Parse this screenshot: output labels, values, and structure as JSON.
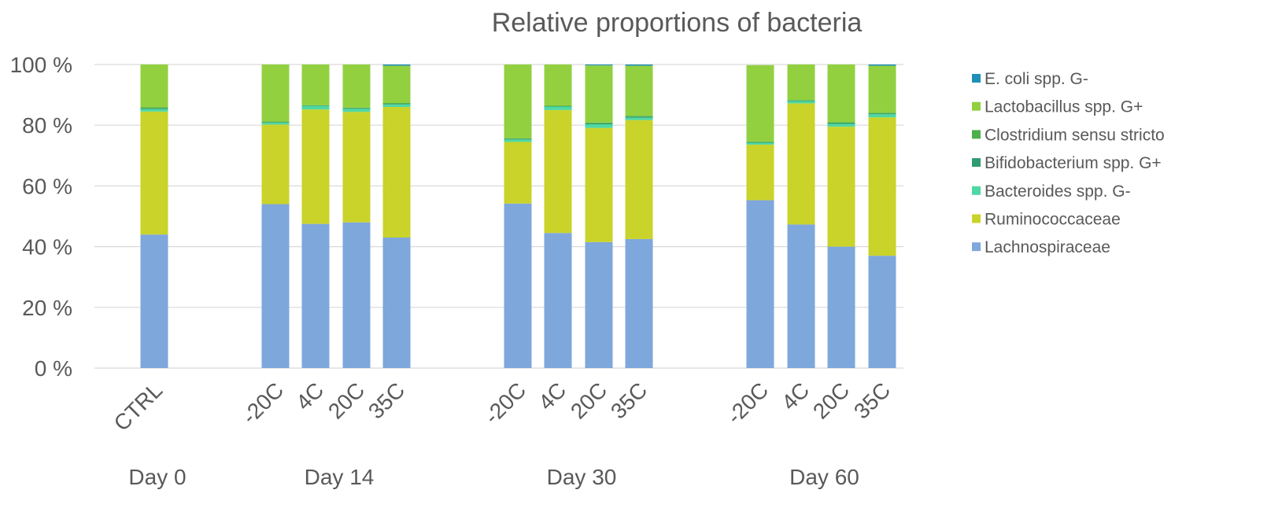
{
  "chart_data": {
    "type": "bar",
    "stacked": true,
    "title": "Relative proportions of bacteria",
    "xlabel": "",
    "ylabel": "",
    "ylim": [
      0,
      100
    ],
    "y_ticks": [
      "0 %",
      "20 %",
      "40 %",
      "60 %",
      "80 %",
      "100 %"
    ],
    "grid": true,
    "legend_position": "right",
    "categories": [
      "CTRL",
      "-20C",
      "4C",
      "20C",
      "35C",
      "-20C",
      "4C",
      "20C",
      "35C",
      "-20C",
      "4C",
      "20C",
      "35C"
    ],
    "groups": [
      {
        "label": "Day 0",
        "members": 1
      },
      {
        "label": "Day 14",
        "members": 4
      },
      {
        "label": "Day 30",
        "members": 4
      },
      {
        "label": "Day 60",
        "members": 4
      }
    ],
    "series": [
      {
        "name": "Lachnospiraceae",
        "color": "#7ea7dc",
        "values": [
          44.0,
          54.0,
          47.5,
          48.0,
          43.0,
          54.2,
          44.5,
          41.5,
          42.5,
          55.3,
          47.3,
          40.0,
          37.0
        ]
      },
      {
        "name": "Ruminococcaceae",
        "color": "#c9d32a",
        "values": [
          40.5,
          26.2,
          37.7,
          36.4,
          43.0,
          20.3,
          40.5,
          37.6,
          39.2,
          18.3,
          39.9,
          39.5,
          45.6
        ]
      },
      {
        "name": "Bacteroides spp. G-",
        "color": "#4ed8a4",
        "values": [
          0.8,
          0.6,
          1.2,
          1.0,
          0.8,
          0.8,
          1.2,
          1.2,
          0.8,
          0.6,
          0.8,
          0.9,
          1.0
        ]
      },
      {
        "name": "Bifidobacterium spp. G+",
        "color": "#2e9c6e",
        "values": [
          0.2,
          0.2,
          0.1,
          0.2,
          0.2,
          0.2,
          0.1,
          0.3,
          0.3,
          0.2,
          0.1,
          0.3,
          0.2
        ]
      },
      {
        "name": "Clostridium sensu stricto",
        "color": "#4caf4c",
        "values": [
          0.4,
          0.2,
          0.1,
          0.2,
          0.3,
          0.2,
          0.1,
          0.3,
          0.3,
          0.2,
          0.2,
          0.3,
          0.3
        ]
      },
      {
        "name": "Lactobacillus spp. G+",
        "color": "#92d040",
        "values": [
          14.1,
          18.8,
          13.4,
          14.2,
          12.3,
          24.3,
          13.6,
          18.8,
          16.5,
          25.2,
          11.7,
          19.0,
          15.5
        ]
      },
      {
        "name": "E. coli spp. G-",
        "color": "#1f8fb8",
        "values": [
          0.0,
          0.0,
          0.0,
          0.0,
          0.4,
          0.0,
          0.0,
          0.3,
          0.4,
          0.0,
          0.0,
          0.0,
          0.4
        ]
      }
    ],
    "legend_order": [
      "E. coli spp. G-",
      "Lactobacillus spp. G+",
      "Clostridium sensu stricto",
      "Bifidobacterium spp. G+",
      "Bacteroides spp. G-",
      "Ruminococcaceae",
      "Lachnospiraceae"
    ]
  }
}
